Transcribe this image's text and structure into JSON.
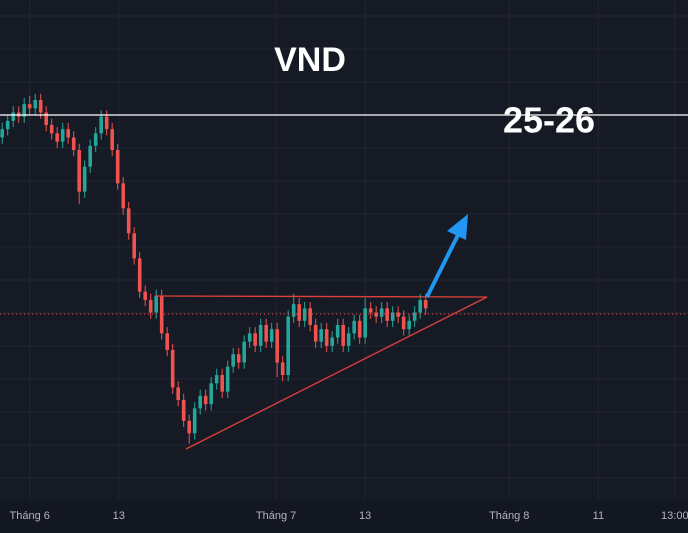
{
  "chart_data": {
    "type": "candlestick",
    "title": "VND",
    "annotation": "25-26",
    "up_color": "#26a69a",
    "down_color": "#ef5350",
    "xlim": [
      -0.4,
      124.7
    ],
    "ylim": [
      16,
      28
    ],
    "xticks": [
      {
        "value": 5,
        "label": "Tháng 6"
      },
      {
        "value": 21.2,
        "label": "13"
      },
      {
        "value": 49.8,
        "label": "Tháng 7"
      },
      {
        "value": 66,
        "label": "13"
      },
      {
        "value": 92.2,
        "label": "Tháng 8"
      },
      {
        "value": 108.4,
        "label": "11"
      },
      {
        "value": 122.3,
        "label": "13:00"
      }
    ],
    "candles": [
      [
        24.7,
        25.05,
        24.55,
        24.9
      ],
      [
        24.9,
        25.25,
        24.75,
        25.1
      ],
      [
        25.1,
        25.45,
        24.95,
        25.3
      ],
      [
        25.3,
        25.45,
        25.05,
        25.2
      ],
      [
        25.2,
        25.65,
        25.05,
        25.5
      ],
      [
        25.5,
        25.7,
        25.25,
        25.4
      ],
      [
        25.4,
        25.75,
        25.25,
        25.6
      ],
      [
        25.6,
        25.75,
        25.15,
        25.3
      ],
      [
        25.3,
        25.45,
        24.85,
        25.0
      ],
      [
        25.0,
        25.15,
        24.65,
        24.8
      ],
      [
        24.8,
        24.95,
        24.45,
        24.6
      ],
      [
        24.6,
        25.05,
        24.45,
        24.9
      ],
      [
        24.9,
        25.05,
        24.55,
        24.7
      ],
      [
        24.7,
        24.85,
        24.25,
        24.4
      ],
      [
        24.4,
        24.55,
        23.1,
        23.4
      ],
      [
        23.4,
        24.15,
        23.25,
        24.0
      ],
      [
        24.0,
        24.65,
        23.85,
        24.5
      ],
      [
        24.5,
        24.95,
        24.35,
        24.8
      ],
      [
        24.8,
        25.35,
        24.65,
        25.2
      ],
      [
        25.2,
        25.35,
        24.75,
        24.9
      ],
      [
        24.9,
        25.05,
        24.25,
        24.4
      ],
      [
        24.4,
        24.55,
        23.45,
        23.6
      ],
      [
        23.6,
        23.75,
        22.85,
        23.0
      ],
      [
        23.0,
        23.15,
        22.25,
        22.4
      ],
      [
        22.4,
        22.55,
        21.65,
        21.8
      ],
      [
        21.8,
        21.95,
        20.85,
        21.0
      ],
      [
        21.0,
        21.15,
        20.65,
        20.8
      ],
      [
        20.8,
        20.95,
        20.35,
        20.5
      ],
      [
        20.5,
        21.05,
        20.35,
        20.9
      ],
      [
        20.9,
        21.05,
        19.85,
        20.0
      ],
      [
        20.0,
        20.15,
        19.45,
        19.6
      ],
      [
        19.6,
        19.75,
        18.55,
        18.7
      ],
      [
        18.7,
        18.85,
        18.25,
        18.4
      ],
      [
        18.4,
        18.55,
        17.75,
        17.9
      ],
      [
        17.9,
        18.05,
        17.35,
        17.6
      ],
      [
        17.6,
        18.35,
        17.45,
        18.2
      ],
      [
        18.2,
        18.65,
        18.05,
        18.5
      ],
      [
        18.5,
        18.65,
        18.15,
        18.3
      ],
      [
        18.3,
        18.95,
        18.15,
        18.8
      ],
      [
        18.8,
        19.15,
        18.65,
        19.0
      ],
      [
        19.0,
        19.15,
        18.45,
        18.6
      ],
      [
        18.6,
        19.35,
        18.45,
        19.2
      ],
      [
        19.2,
        19.65,
        19.05,
        19.5
      ],
      [
        19.5,
        19.65,
        19.15,
        19.3
      ],
      [
        19.3,
        19.95,
        19.15,
        19.8
      ],
      [
        19.8,
        20.15,
        19.65,
        20.0
      ],
      [
        20.0,
        20.15,
        19.55,
        19.7
      ],
      [
        19.7,
        20.35,
        19.55,
        20.2
      ],
      [
        20.2,
        20.35,
        19.65,
        19.8
      ],
      [
        19.8,
        20.25,
        19.65,
        20.1
      ],
      [
        20.1,
        20.25,
        18.95,
        19.3
      ],
      [
        19.3,
        19.45,
        18.85,
        19.0
      ],
      [
        19.0,
        20.55,
        18.85,
        20.4
      ],
      [
        20.4,
        20.95,
        20.25,
        20.7
      ],
      [
        20.7,
        20.85,
        20.15,
        20.3
      ],
      [
        20.3,
        20.75,
        20.15,
        20.6
      ],
      [
        20.6,
        20.75,
        20.05,
        20.2
      ],
      [
        20.2,
        20.35,
        19.65,
        19.8
      ],
      [
        19.8,
        20.25,
        19.65,
        20.1
      ],
      [
        20.1,
        20.25,
        19.55,
        19.7
      ],
      [
        19.7,
        20.05,
        19.55,
        19.9
      ],
      [
        19.9,
        20.35,
        19.75,
        20.2
      ],
      [
        20.2,
        20.35,
        19.55,
        19.7
      ],
      [
        19.7,
        20.15,
        19.55,
        20.0
      ],
      [
        20.0,
        20.45,
        19.85,
        20.3
      ],
      [
        20.3,
        20.45,
        19.75,
        19.9
      ],
      [
        19.9,
        20.85,
        19.75,
        20.6
      ],
      [
        20.6,
        20.75,
        20.35,
        20.5
      ],
      [
        20.5,
        20.65,
        20.25,
        20.4
      ],
      [
        20.4,
        20.75,
        20.25,
        20.6
      ],
      [
        20.6,
        20.75,
        20.15,
        20.3
      ],
      [
        20.3,
        20.65,
        20.15,
        20.5
      ],
      [
        20.5,
        20.65,
        20.25,
        20.4
      ],
      [
        20.4,
        20.55,
        19.95,
        20.1
      ],
      [
        20.1,
        20.45,
        19.95,
        20.3
      ],
      [
        20.3,
        20.65,
        20.15,
        20.5
      ],
      [
        20.5,
        20.95,
        20.35,
        20.8
      ],
      [
        20.8,
        20.95,
        20.45,
        20.6
      ]
    ]
  }
}
